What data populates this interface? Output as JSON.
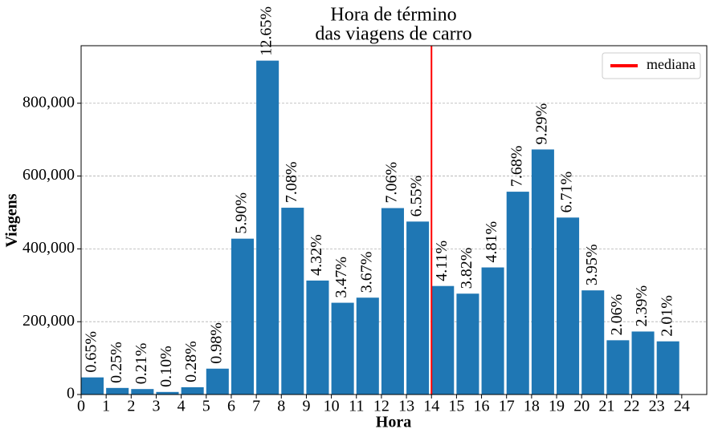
{
  "chart_data": {
    "type": "histogram",
    "title": "Hora de término",
    "subtitle": "das viagens de carro",
    "x_label": "Hora",
    "y_label": "Viagens",
    "bins": [
      0,
      1,
      2,
      3,
      4,
      5,
      6,
      7,
      8,
      9,
      10,
      11,
      12,
      13,
      14,
      15,
      16,
      17,
      18,
      19,
      20,
      21,
      22,
      23,
      24
    ],
    "values": [
      47000,
      18000,
      15000,
      7000,
      20000,
      71000,
      428000,
      917000,
      513000,
      313000,
      252000,
      266000,
      512000,
      475000,
      298000,
      277000,
      349000,
      557000,
      673000,
      486000,
      286000,
      149000,
      173000,
      146000
    ],
    "percent_labels": [
      "0.65%",
      "0.25%",
      "0.21%",
      "0.10%",
      "0.28%",
      "0.98%",
      "5.90%",
      "12.65%",
      "7.08%",
      "4.32%",
      "3.47%",
      "3.67%",
      "7.06%",
      "6.55%",
      "4.11%",
      "3.82%",
      "4.81%",
      "7.68%",
      "9.29%",
      "6.71%",
      "3.95%",
      "2.06%",
      "2.39%",
      "2.01%"
    ],
    "color": "#1f77b4",
    "xlim": [
      0,
      25
    ],
    "xticks": [
      0,
      1,
      2,
      3,
      4,
      5,
      6,
      7,
      8,
      9,
      10,
      11,
      12,
      13,
      14,
      15,
      16,
      17,
      18,
      19,
      20,
      21,
      22,
      23,
      24
    ],
    "ylim": [
      0,
      958000
    ],
    "yticks": [
      0,
      {
        "value": 200000,
        "label": "200,000"
      },
      {
        "value": 400000,
        "label": "400,000"
      },
      {
        "value": 600000,
        "label": "600,000"
      },
      {
        "value": 800000,
        "label": "800,000"
      }
    ],
    "grid": true,
    "median": {
      "value": 14,
      "label": "mediana",
      "color": "#ff0000"
    },
    "legend_position": "upper-right"
  }
}
